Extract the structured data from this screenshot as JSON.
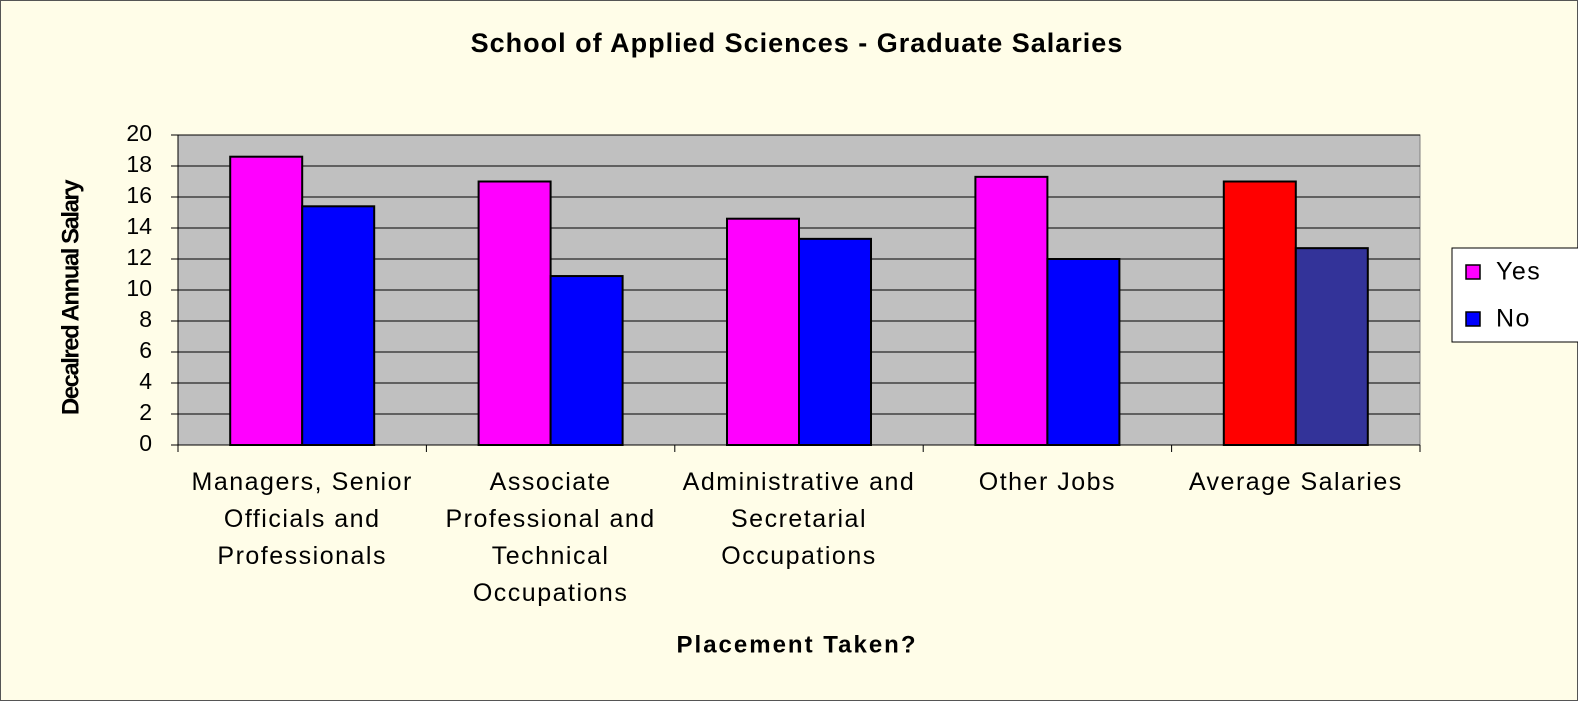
{
  "chart_data": {
    "type": "bar",
    "title": "School of Applied Sciences - Graduate Salaries",
    "x_label": "Placement Taken?",
    "y_label": "Decalred Annual Salary",
    "categories": [
      "Managers, Senior Officials and Professionals",
      "Associate Professional and Technical Occupations",
      "Administrative and Secretarial Occupations",
      "Other Jobs",
      "Average Salaries"
    ],
    "series": [
      {
        "name": "Yes",
        "color": "#ff00ff",
        "point_colors": [
          "#ff00ff",
          "#ff00ff",
          "#ff00ff",
          "#ff00ff",
          "#ff0000"
        ],
        "values": [
          18.6,
          17,
          14.6,
          17.3,
          17
        ]
      },
      {
        "name": "No",
        "color": "#0000ff",
        "point_colors": [
          "#0000ff",
          "#0000ff",
          "#0000ff",
          "#0000ff",
          "#333399"
        ],
        "values": [
          15.4,
          10.9,
          13.3,
          12,
          12.7
        ]
      }
    ],
    "ylim": [
      0,
      20
    ],
    "yticks": [
      0,
      2,
      4,
      6,
      8,
      10,
      12,
      14,
      16,
      18,
      20
    ],
    "grid": true,
    "legend": "right"
  }
}
